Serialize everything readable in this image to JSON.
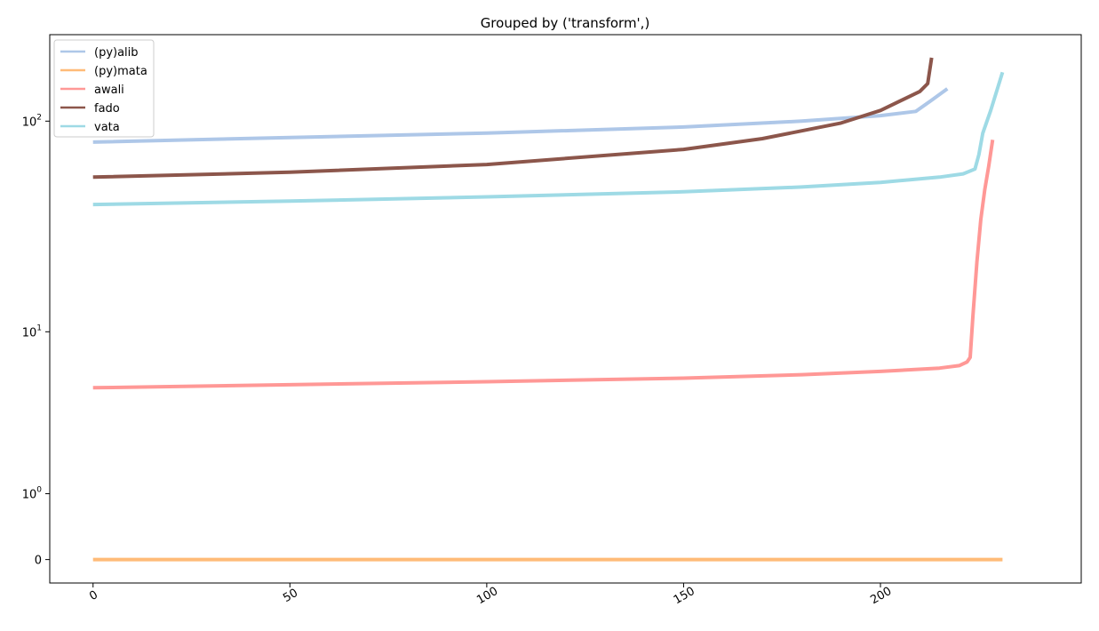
{
  "chart_data": {
    "type": "line",
    "title": "Grouped by ('transform',)",
    "xlabel": "",
    "ylabel": "",
    "yscale": "symlog",
    "linthresh": 1,
    "xlim": [
      -11,
      251
    ],
    "ylim": [
      -0.28,
      250
    ],
    "x_ticks": [
      0,
      50,
      100,
      150,
      200
    ],
    "x_tick_labels": [
      "0",
      "50",
      "100",
      "150",
      "200"
    ],
    "x_tick_rotation": -30,
    "y_ticks": [
      0,
      1,
      10,
      100
    ],
    "y_tick_labels": [
      {
        "base": "0",
        "exp": ""
      },
      {
        "base": "10",
        "exp": "0"
      },
      {
        "base": "10",
        "exp": "1"
      },
      {
        "base": "10",
        "exp": "2"
      }
    ],
    "grid": false,
    "legend_position": "upper-left",
    "series": [
      {
        "name": "(py)alib",
        "color": "#aec7e8",
        "points": [
          [
            0,
            80
          ],
          [
            50,
            84
          ],
          [
            100,
            88
          ],
          [
            150,
            94
          ],
          [
            180,
            100
          ],
          [
            200,
            106
          ],
          [
            209,
            111
          ],
          [
            213,
            125
          ],
          [
            217,
            141
          ]
        ]
      },
      {
        "name": "(py)mata",
        "color": "#ffbb78",
        "points": [
          [
            0,
            0
          ],
          [
            231,
            0
          ]
        ]
      },
      {
        "name": "awali",
        "color": "#ff9896",
        "points": [
          [
            0,
            5.1
          ],
          [
            50,
            5.3
          ],
          [
            100,
            5.5
          ],
          [
            150,
            5.75
          ],
          [
            180,
            6.0
          ],
          [
            200,
            6.25
          ],
          [
            215,
            6.5
          ],
          [
            220,
            6.7
          ],
          [
            222,
            7.0
          ],
          [
            222.8,
            7.4
          ],
          [
            223.5,
            12
          ],
          [
            224.5,
            22
          ],
          [
            225.5,
            35
          ],
          [
            226.5,
            48
          ],
          [
            227.5,
            62
          ],
          [
            228.5,
            82
          ]
        ]
      },
      {
        "name": "fado",
        "color": "#8c564b",
        "points": [
          [
            0,
            55
          ],
          [
            50,
            58
          ],
          [
            100,
            63
          ],
          [
            150,
            74
          ],
          [
            170,
            83
          ],
          [
            190,
            98
          ],
          [
            200,
            112
          ],
          [
            210,
            137
          ],
          [
            212,
            149
          ],
          [
            213,
            196
          ]
        ]
      },
      {
        "name": "vata",
        "color": "#9edae5",
        "points": [
          [
            0,
            41
          ],
          [
            50,
            42.5
          ],
          [
            100,
            44.5
          ],
          [
            150,
            47
          ],
          [
            180,
            49.5
          ],
          [
            200,
            52
          ],
          [
            215,
            55
          ],
          [
            221,
            57
          ],
          [
            224,
            60
          ],
          [
            225,
            70
          ],
          [
            226,
            88
          ],
          [
            228,
            112
          ],
          [
            231,
            168
          ]
        ]
      }
    ]
  }
}
